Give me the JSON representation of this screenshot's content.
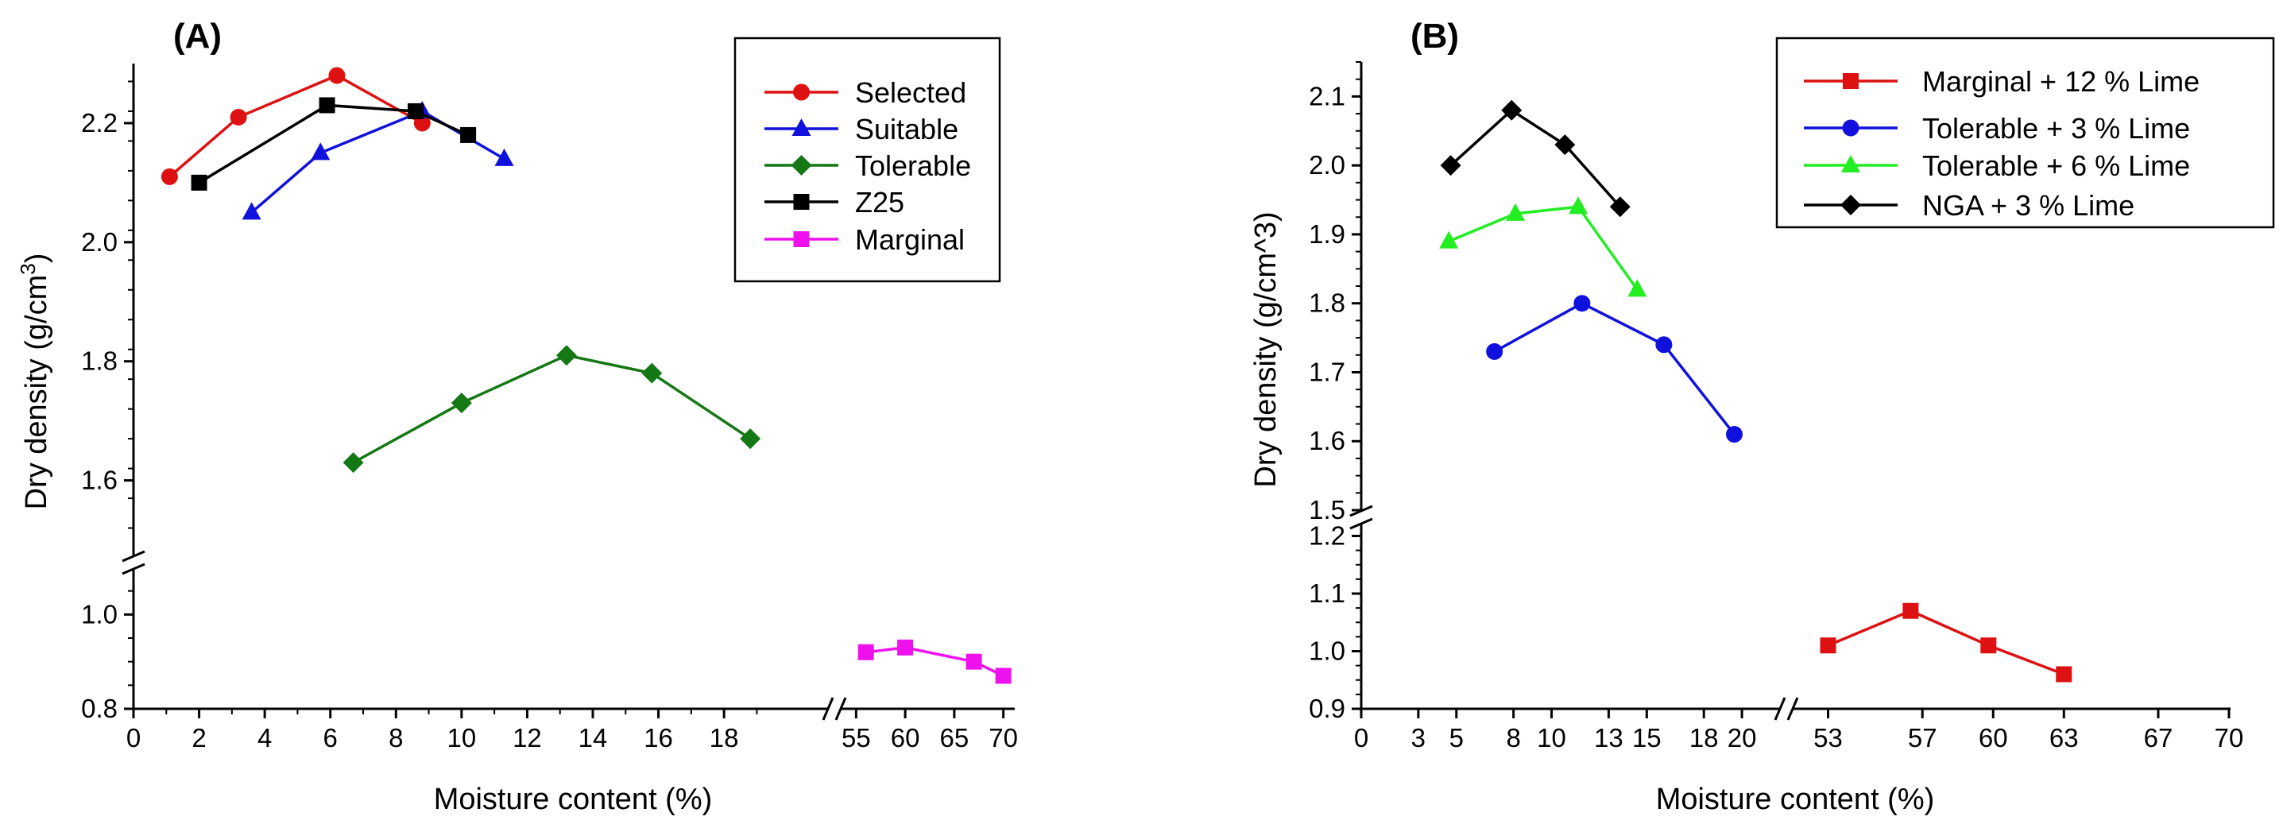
{
  "chart_data": [
    {
      "panel": "(A)",
      "type": "line",
      "xlabel": "Moisture content (%)",
      "ylabel": "Dry density (g/cm",
      "ylabel_sup": "3",
      "ylabel_end": ")",
      "x_segments": [
        {
          "range": [
            0,
            21
          ],
          "ticks": [
            0,
            2,
            4,
            6,
            8,
            10,
            12,
            14,
            16,
            18
          ]
        },
        {
          "range": [
            54,
            71
          ],
          "ticks": [
            55,
            60,
            65,
            70
          ]
        }
      ],
      "y_segments": [
        {
          "range": [
            0.8,
            1.1
          ],
          "ticks": [
            0.8,
            1.0
          ],
          "tick_labels": [
            "0.8",
            "1.0"
          ]
        },
        {
          "range": [
            1.47,
            2.3
          ],
          "ticks": [
            1.6,
            1.8,
            2.0,
            2.2
          ],
          "tick_labels": [
            "1.6",
            "1.8",
            "2.0",
            "2.2"
          ]
        }
      ],
      "legend": "top-right",
      "series": [
        {
          "name": "Selected",
          "color": "#dd1111",
          "marker": "circle",
          "x": [
            1.1,
            3.2,
            6.2,
            8.8
          ],
          "y": [
            2.11,
            2.21,
            2.28,
            2.2
          ]
        },
        {
          "name": "Suitable",
          "color": "#1111dd",
          "marker": "triangle",
          "x": [
            3.6,
            5.7,
            8.8,
            11.3
          ],
          "y": [
            2.05,
            2.15,
            2.22,
            2.14
          ]
        },
        {
          "name": "Tolerable",
          "color": "#147814",
          "marker": "diamond",
          "x": [
            6.7,
            10.0,
            13.2,
            15.8,
            18.8
          ],
          "y": [
            1.63,
            1.73,
            1.81,
            1.78,
            1.67
          ]
        },
        {
          "name": "Z25",
          "color": "#000000",
          "marker": "square",
          "x": [
            2.0,
            5.9,
            8.6,
            10.2
          ],
          "y": [
            2.1,
            2.23,
            2.22,
            2.18
          ]
        },
        {
          "name": "Marginal",
          "color": "#ee11ee",
          "marker": "square",
          "x": [
            56.0,
            60.0,
            67.0,
            70.0
          ],
          "y": [
            0.92,
            0.93,
            0.9,
            0.87
          ]
        }
      ]
    },
    {
      "panel": "(B)",
      "type": "line",
      "xlabel": "Moisture content (%)",
      "ylabel": "Dry density (g/cm^3)",
      "x_segments": [
        {
          "range": [
            0,
            22
          ],
          "ticks": [
            0,
            3,
            5,
            8,
            10,
            13,
            15,
            18,
            20
          ]
        },
        {
          "range": [
            51.5,
            70
          ],
          "ticks": [
            53,
            57,
            60,
            63,
            67,
            70
          ]
        }
      ],
      "y_segments": [
        {
          "range": [
            0.9,
            1.22
          ],
          "ticks": [
            0.9,
            1.0,
            1.1,
            1.2
          ],
          "tick_labels": [
            "0.9",
            "1.0",
            "1.1",
            "1.2"
          ]
        },
        {
          "range": [
            1.5,
            2.15
          ],
          "ticks": [
            1.5,
            1.6,
            1.7,
            1.8,
            1.9,
            2.0,
            2.1
          ],
          "tick_labels": [
            "1.5",
            "1.6",
            "1.7",
            "1.8",
            "1.9",
            "2.0",
            "2.1"
          ]
        }
      ],
      "legend": "top-right",
      "series": [
        {
          "name": "Marginal + 12 % Lime",
          "color": "#dd1111",
          "marker": "square",
          "x": [
            53.0,
            56.5,
            59.8,
            63.0
          ],
          "y": [
            1.01,
            1.07,
            1.01,
            0.96
          ]
        },
        {
          "name": "Tolerable + 3 % Lime",
          "color": "#1111dd",
          "marker": "circle",
          "x": [
            7.0,
            11.6,
            15.9,
            19.6
          ],
          "y": [
            1.73,
            1.8,
            1.74,
            1.61
          ]
        },
        {
          "name": "Tolerable + 6 % Lime",
          "color": "#22ee22",
          "marker": "triangle",
          "x": [
            4.6,
            8.1,
            11.4,
            14.5
          ],
          "y": [
            1.89,
            1.93,
            1.94,
            1.82
          ]
        },
        {
          "name": "NGA + 3 % Lime",
          "color": "#000000",
          "marker": "diamond",
          "x": [
            4.7,
            7.9,
            10.7,
            13.6
          ],
          "y": [
            2.0,
            2.08,
            2.03,
            1.94
          ]
        }
      ]
    }
  ]
}
